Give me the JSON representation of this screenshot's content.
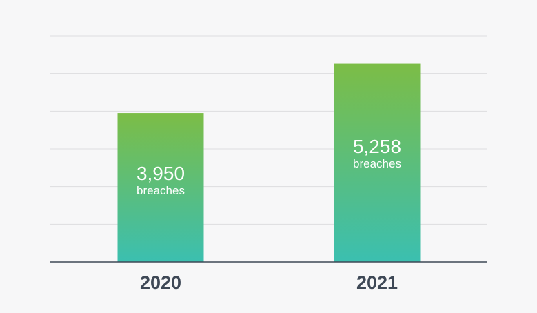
{
  "chart_data": {
    "type": "bar",
    "categories": [
      "2020",
      "2021"
    ],
    "values": [
      3950,
      5258
    ],
    "value_labels": [
      "3,950",
      "5,258"
    ],
    "unit_label": "breaches",
    "ylim": [
      0,
      6000
    ],
    "grid": true,
    "legend": "none",
    "colors": {
      "bar_top": "#7cbd46",
      "bar_bottom": "#3bbfb0",
      "grid": "#dcdcdf",
      "axis": "#3e4856",
      "background": "#f7f7f8"
    }
  }
}
